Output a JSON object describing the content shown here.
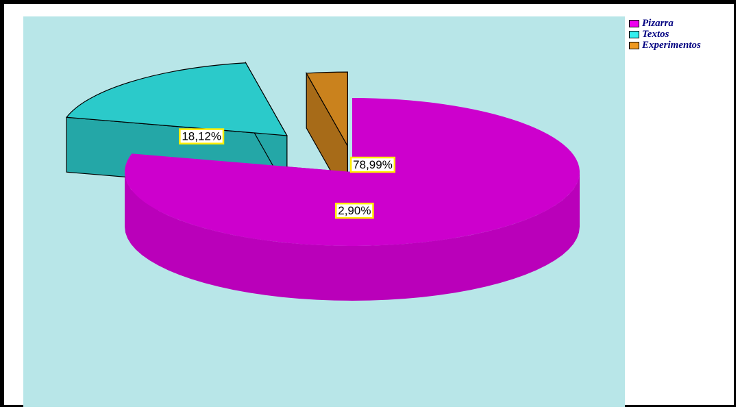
{
  "chart_data": {
    "type": "pie",
    "title": "",
    "slices": [
      {
        "name": "Pizarra",
        "value": 78.99,
        "label": "78,99%",
        "color": "#ee00ee"
      },
      {
        "name": "Textos",
        "value": 18.12,
        "label": "18,12%",
        "color": "#33eeee"
      },
      {
        "name": "Experimentos",
        "value": 2.9,
        "label": "2,90%",
        "color": "#ee9922"
      }
    ],
    "legend_position": "top-right",
    "plot_background": "#b8e6e8",
    "three_d": true,
    "exploded": [
      "Textos",
      "Experimentos"
    ]
  }
}
